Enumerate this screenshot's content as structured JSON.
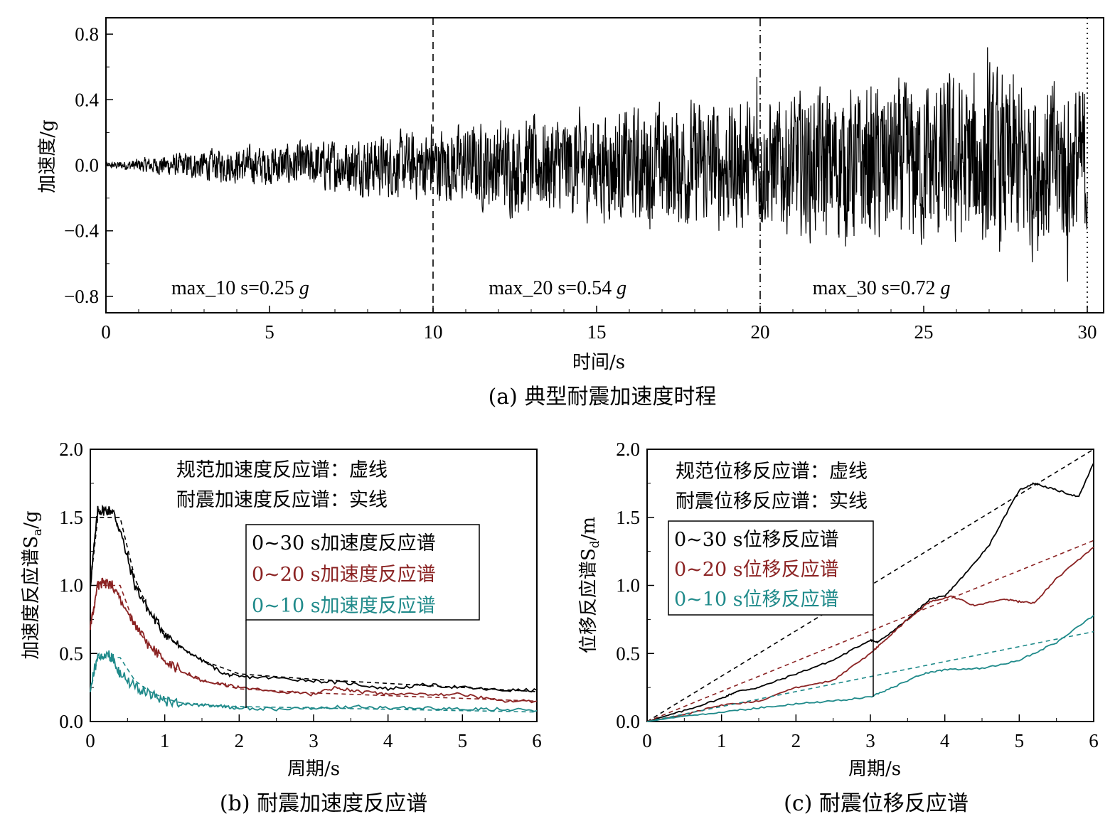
{
  "chart_data": [
    {
      "id": "a",
      "type": "line",
      "caption": "(a) 典型耐震加速度时程",
      "xlabel": "时间/s",
      "ylabel": "加速度/g",
      "xlim": [
        0,
        30.5
      ],
      "ylim": [
        -0.9,
        0.9
      ],
      "xticks": [
        "0",
        "5",
        "10",
        "15",
        "20",
        "25",
        "30"
      ],
      "yticks": [
        "−0.8",
        "−0.4",
        "0.0",
        "0.4",
        "0.8"
      ],
      "grid": false,
      "dividers": [
        {
          "x": 10,
          "style": "dashed"
        },
        {
          "x": 20,
          "style": "dashdot"
        },
        {
          "x": 30,
          "style": "dotted"
        }
      ],
      "annotations": [
        {
          "x": 2.0,
          "text": "max_10 s=0.25 ",
          "unit": "g"
        },
        {
          "x": 11.7,
          "text": "max_20 s=0.54 ",
          "unit": "g"
        },
        {
          "x": 21.6,
          "text": "max_30 s=0.72 ",
          "unit": "g"
        }
      ],
      "series": [
        {
          "color": "#000000",
          "envelope": [
            [
              0,
              0.02
            ],
            [
              3,
              0.12
            ],
            [
              6,
              0.18
            ],
            [
              10,
              0.28
            ],
            [
              12,
              0.36
            ],
            [
              15,
              0.42
            ],
            [
              18,
              0.5
            ],
            [
              20,
              0.5
            ],
            [
              22,
              0.6
            ],
            [
              25,
              0.65
            ],
            [
              27,
              0.72
            ],
            [
              30,
              0.65
            ]
          ],
          "peaks": [
            [
              9.95,
              0.25
            ],
            [
              19.9,
              0.54
            ],
            [
              26.95,
              0.72
            ],
            [
              29.4,
              -0.71
            ]
          ]
        }
      ]
    },
    {
      "id": "b",
      "type": "line",
      "caption": "(b) 耐震加速度反应谱",
      "xlabel": "周期/s",
      "ylabel": "加速度反应谱S",
      "ylabel_sub": "a",
      "ylabel_unit": "/g",
      "xlim": [
        0,
        6
      ],
      "ylim": [
        0,
        2
      ],
      "xticks": [
        "0",
        "1",
        "2",
        "3",
        "4",
        "5",
        "6"
      ],
      "yticks": [
        "0.0",
        "0.5",
        "1.0",
        "1.5",
        "2.0"
      ],
      "notes": [
        "规范加速度反应谱：虚线",
        "耐震加速度反应谱：实线"
      ],
      "legend": {
        "placement": "center-right",
        "entries": [
          {
            "label": "0~30 s加速度反应谱",
            "color": "#000000"
          },
          {
            "label": "0~20 s加速度反应谱",
            "color": "#8b2323"
          },
          {
            "label": "0~10 s加速度反应谱",
            "color": "#1f8a8a"
          }
        ]
      },
      "series": [
        {
          "style": "solid",
          "color": "#000000",
          "points": [
            [
              0,
              1.0
            ],
            [
              0.1,
              1.55
            ],
            [
              0.2,
              1.55
            ],
            [
              0.3,
              1.55
            ],
            [
              0.4,
              1.4
            ],
            [
              0.6,
              1.0
            ],
            [
              0.8,
              0.8
            ],
            [
              1.0,
              0.65
            ],
            [
              1.2,
              0.55
            ],
            [
              1.5,
              0.45
            ],
            [
              1.8,
              0.35
            ],
            [
              2.0,
              0.33
            ],
            [
              2.5,
              0.32
            ],
            [
              3.0,
              0.3
            ],
            [
              3.5,
              0.28
            ],
            [
              4.0,
              0.24
            ],
            [
              4.5,
              0.27
            ],
            [
              5.0,
              0.25
            ],
            [
              5.5,
              0.23
            ],
            [
              6.0,
              0.23
            ]
          ]
        },
        {
          "style": "solid",
          "color": "#8b2323",
          "points": [
            [
              0,
              0.7
            ],
            [
              0.1,
              1.0
            ],
            [
              0.2,
              1.02
            ],
            [
              0.3,
              1.0
            ],
            [
              0.4,
              0.9
            ],
            [
              0.6,
              0.7
            ],
            [
              0.8,
              0.55
            ],
            [
              1.0,
              0.45
            ],
            [
              1.2,
              0.38
            ],
            [
              1.5,
              0.3
            ],
            [
              1.8,
              0.27
            ],
            [
              2.0,
              0.25
            ],
            [
              2.5,
              0.22
            ],
            [
              3.0,
              0.2
            ],
            [
              3.3,
              0.25
            ],
            [
              3.6,
              0.22
            ],
            [
              4.0,
              0.2
            ],
            [
              4.5,
              0.2
            ],
            [
              5.0,
              0.2
            ],
            [
              5.5,
              0.15
            ],
            [
              6.0,
              0.15
            ]
          ]
        },
        {
          "style": "solid",
          "color": "#1f8a8a",
          "points": [
            [
              0,
              0.25
            ],
            [
              0.1,
              0.48
            ],
            [
              0.2,
              0.5
            ],
            [
              0.3,
              0.47
            ],
            [
              0.4,
              0.35
            ],
            [
              0.6,
              0.25
            ],
            [
              0.8,
              0.2
            ],
            [
              1.0,
              0.15
            ],
            [
              1.2,
              0.13
            ],
            [
              1.5,
              0.12
            ],
            [
              1.8,
              0.11
            ],
            [
              2.0,
              0.1
            ],
            [
              2.5,
              0.09
            ],
            [
              3.0,
              0.1
            ],
            [
              3.5,
              0.11
            ],
            [
              4.0,
              0.1
            ],
            [
              4.5,
              0.1
            ],
            [
              5.0,
              0.09
            ],
            [
              5.5,
              0.09
            ],
            [
              6.0,
              0.08
            ]
          ]
        },
        {
          "style": "dashed",
          "color": "#000000",
          "points": [
            [
              0,
              1.0
            ],
            [
              0.1,
              1.5
            ],
            [
              0.4,
              1.5
            ],
            [
              0.6,
              1.05
            ],
            [
              0.8,
              0.8
            ],
            [
              1.0,
              0.65
            ],
            [
              1.2,
              0.55
            ],
            [
              1.5,
              0.45
            ],
            [
              2.0,
              0.35
            ],
            [
              3.0,
              0.31
            ],
            [
              4.0,
              0.28
            ],
            [
              5.0,
              0.25
            ],
            [
              6.0,
              0.22
            ]
          ]
        },
        {
          "style": "dashed",
          "color": "#8b2323",
          "points": [
            [
              0,
              0.7
            ],
            [
              0.1,
              1.0
            ],
            [
              0.4,
              1.0
            ],
            [
              0.6,
              0.7
            ],
            [
              0.8,
              0.55
            ],
            [
              1.0,
              0.44
            ],
            [
              1.2,
              0.37
            ],
            [
              1.5,
              0.3
            ],
            [
              2.0,
              0.24
            ],
            [
              3.0,
              0.21
            ],
            [
              4.0,
              0.19
            ],
            [
              5.0,
              0.17
            ],
            [
              6.0,
              0.15
            ]
          ]
        },
        {
          "style": "dashed",
          "color": "#1f8a8a",
          "points": [
            [
              0,
              0.22
            ],
            [
              0.1,
              0.47
            ],
            [
              0.4,
              0.47
            ],
            [
              0.6,
              0.3
            ],
            [
              0.8,
              0.22
            ],
            [
              1.0,
              0.17
            ],
            [
              1.2,
              0.14
            ],
            [
              1.5,
              0.12
            ],
            [
              2.0,
              0.11
            ],
            [
              3.0,
              0.1
            ],
            [
              4.0,
              0.09
            ],
            [
              5.0,
              0.08
            ],
            [
              6.0,
              0.07
            ]
          ]
        }
      ]
    },
    {
      "id": "c",
      "type": "line",
      "caption": "(c) 耐震位移反应谱",
      "xlabel": "周期/s",
      "ylabel": "位移反应谱S",
      "ylabel_sub": "d",
      "ylabel_unit": "/m",
      "xlim": [
        0,
        6
      ],
      "ylim": [
        0,
        2
      ],
      "xticks": [
        "0",
        "1",
        "2",
        "3",
        "4",
        "5",
        "6"
      ],
      "yticks": [
        "0.0",
        "0.5",
        "1.0",
        "1.5",
        "2.0"
      ],
      "notes": [
        "规范位移反应谱：虚线",
        "耐震位移反应谱：实线"
      ],
      "legend": {
        "placement": "center-left",
        "entries": [
          {
            "label": "0~30 s位移反应谱",
            "color": "#000000"
          },
          {
            "label": "0~20 s位移反应谱",
            "color": "#8b2323"
          },
          {
            "label": "0~10 s位移反应谱",
            "color": "#1f8a8a"
          }
        ]
      },
      "series": [
        {
          "style": "solid",
          "color": "#000000",
          "points": [
            [
              0,
              0
            ],
            [
              0.5,
              0.08
            ],
            [
              1.0,
              0.17
            ],
            [
              1.2,
              0.22
            ],
            [
              1.5,
              0.25
            ],
            [
              2.0,
              0.35
            ],
            [
              2.5,
              0.45
            ],
            [
              3.0,
              0.6
            ],
            [
              3.1,
              0.58
            ],
            [
              3.5,
              0.75
            ],
            [
              3.8,
              0.9
            ],
            [
              4.0,
              0.92
            ],
            [
              4.3,
              1.1
            ],
            [
              4.6,
              1.3
            ],
            [
              5.0,
              1.7
            ],
            [
              5.2,
              1.75
            ],
            [
              5.5,
              1.7
            ],
            [
              5.8,
              1.65
            ],
            [
              6.0,
              1.9
            ]
          ]
        },
        {
          "style": "solid",
          "color": "#8b2323",
          "points": [
            [
              0,
              0
            ],
            [
              0.5,
              0.05
            ],
            [
              1.0,
              0.12
            ],
            [
              1.5,
              0.15
            ],
            [
              2.0,
              0.25
            ],
            [
              2.5,
              0.3
            ],
            [
              3.0,
              0.5
            ],
            [
              3.2,
              0.6
            ],
            [
              3.5,
              0.75
            ],
            [
              3.8,
              0.88
            ],
            [
              4.1,
              0.92
            ],
            [
              4.4,
              0.85
            ],
            [
              4.8,
              0.9
            ],
            [
              5.0,
              0.88
            ],
            [
              5.2,
              0.87
            ],
            [
              5.5,
              1.05
            ],
            [
              6.0,
              1.28
            ]
          ]
        },
        {
          "style": "solid",
          "color": "#1f8a8a",
          "points": [
            [
              0,
              0
            ],
            [
              0.5,
              0.04
            ],
            [
              1.0,
              0.07
            ],
            [
              1.5,
              0.1
            ],
            [
              2.0,
              0.13
            ],
            [
              2.5,
              0.15
            ],
            [
              3.0,
              0.18
            ],
            [
              3.3,
              0.25
            ],
            [
              3.7,
              0.35
            ],
            [
              4.0,
              0.38
            ],
            [
              4.5,
              0.39
            ],
            [
              5.0,
              0.45
            ],
            [
              5.5,
              0.58
            ],
            [
              6.0,
              0.78
            ]
          ]
        },
        {
          "style": "dashed",
          "color": "#000000",
          "points": [
            [
              0,
              0
            ],
            [
              6,
              2.0
            ]
          ]
        },
        {
          "style": "dashed",
          "color": "#8b2323",
          "points": [
            [
              0,
              0
            ],
            [
              6,
              1.33
            ]
          ]
        },
        {
          "style": "dashed",
          "color": "#1f8a8a",
          "points": [
            [
              0,
              0
            ],
            [
              6,
              0.66
            ]
          ]
        }
      ]
    }
  ]
}
